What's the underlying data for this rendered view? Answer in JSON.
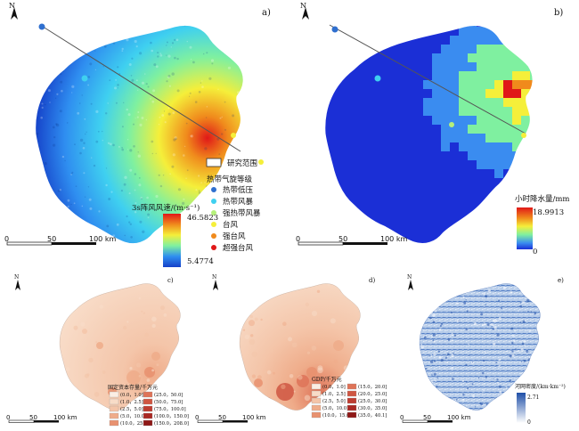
{
  "panels": [
    {
      "id": "a",
      "label": "a)"
    },
    {
      "id": "b",
      "label": "b)"
    },
    {
      "id": "c",
      "label": "c)"
    },
    {
      "id": "d",
      "label": "d)"
    },
    {
      "id": "e",
      "label": "e)"
    }
  ],
  "north_label": "N",
  "scalebar": {
    "top": [
      "0",
      "50",
      "100 km"
    ],
    "bottom": [
      "0",
      "50",
      "100 km"
    ]
  },
  "legend_a": {
    "study_area": "研究范围",
    "cyclone_title": "热带气旋等级",
    "cyclone_levels": [
      {
        "name": "热带低压",
        "color": "#2f6fcf"
      },
      {
        "name": "热带风暴",
        "color": "#3fd0f0"
      },
      {
        "name": "强热带风暴",
        "color": "#b5f07a"
      },
      {
        "name": "台风",
        "color": "#f5ef3a"
      },
      {
        "name": "强台风",
        "color": "#f08a1c"
      },
      {
        "name": "超强台风",
        "color": "#e01818"
      }
    ],
    "wind_title": "3s阵风风速/(m·s⁻¹)",
    "wind_max": "46.5823",
    "wind_min": "5.4774"
  },
  "legend_b": {
    "rain_title": "小时降水量/mm",
    "rain_max": "18.9913",
    "rain_min": "0"
  },
  "legend_c": {
    "title": "固定资本存量/千万元",
    "classes": [
      "(0.0，1.0]",
      "(1.0，2.5]",
      "(2.5，5.0]",
      "(5.0，10.0]",
      "(10.0，25.0]",
      "(25.0，50.0]",
      "(50.0，75.0]",
      "(75.0，100.0]",
      "(100.0，150.0]",
      "(150.0，208.0]"
    ],
    "colors": [
      "#fbeee4",
      "#f8dcc8",
      "#f4c5a9",
      "#efac8a",
      "#e8916f",
      "#de7358",
      "#cf5642",
      "#bd3d31",
      "#a92823",
      "#8f1817"
    ]
  },
  "legend_d": {
    "title": "GDP/千万元",
    "classes": [
      "(0.0，1.0]",
      "(1.0，2.5]",
      "(2.5，5.0]",
      "(5.0，10.0]",
      "(10.0，15.0]",
      "(15.0，20.0]",
      "(20.0，25.0]",
      "(25.0，30.0]",
      "(30.0，35.0]",
      "(35.0，40.1]"
    ],
    "colors": [
      "#fbeee4",
      "#f8dcc8",
      "#f4c5a9",
      "#efac8a",
      "#e8916f",
      "#de7358",
      "#cf5642",
      "#bd3d31",
      "#a92823",
      "#8f1817"
    ]
  },
  "legend_e": {
    "title": "河网密度/(km·km⁻²)",
    "max": "2.71",
    "min": "0"
  },
  "colors": {
    "wind_ramp": [
      "#1540c8",
      "#2f8ef0",
      "#3fd0f0",
      "#7ff0a0",
      "#f5ef3a",
      "#f08a1c",
      "#e01818"
    ],
    "rain_ramp": [
      "#1b2fd6",
      "#3a8cf0",
      "#7ff0a0",
      "#f5ef3a",
      "#f08a1c",
      "#e01818"
    ],
    "river_ramp": [
      "#ffffff",
      "#9dbde6",
      "#2a5fb8"
    ]
  }
}
